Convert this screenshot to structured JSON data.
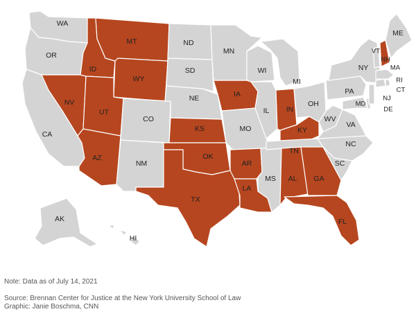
{
  "colors": {
    "highlight": "#b6461f",
    "other": "#d4d4d4",
    "border": "#ffffff"
  },
  "states": [
    {
      "abbr": "WA",
      "highlighted": false
    },
    {
      "abbr": "OR",
      "highlighted": false
    },
    {
      "abbr": "CA",
      "highlighted": false
    },
    {
      "abbr": "NV",
      "highlighted": true
    },
    {
      "abbr": "ID",
      "highlighted": true
    },
    {
      "abbr": "MT",
      "highlighted": true
    },
    {
      "abbr": "WY",
      "highlighted": true
    },
    {
      "abbr": "UT",
      "highlighted": true
    },
    {
      "abbr": "AZ",
      "highlighted": true
    },
    {
      "abbr": "CO",
      "highlighted": false
    },
    {
      "abbr": "NM",
      "highlighted": false
    },
    {
      "abbr": "ND",
      "highlighted": false
    },
    {
      "abbr": "SD",
      "highlighted": false
    },
    {
      "abbr": "NE",
      "highlighted": false
    },
    {
      "abbr": "KS",
      "highlighted": true
    },
    {
      "abbr": "OK",
      "highlighted": true
    },
    {
      "abbr": "TX",
      "highlighted": true
    },
    {
      "abbr": "MN",
      "highlighted": false
    },
    {
      "abbr": "IA",
      "highlighted": true
    },
    {
      "abbr": "MO",
      "highlighted": false
    },
    {
      "abbr": "AR",
      "highlighted": true
    },
    {
      "abbr": "LA",
      "highlighted": true
    },
    {
      "abbr": "WI",
      "highlighted": false
    },
    {
      "abbr": "IL",
      "highlighted": false
    },
    {
      "abbr": "MS",
      "highlighted": false
    },
    {
      "abbr": "MI",
      "highlighted": false
    },
    {
      "abbr": "IN",
      "highlighted": true
    },
    {
      "abbr": "KY",
      "highlighted": true
    },
    {
      "abbr": "TN",
      "highlighted": false
    },
    {
      "abbr": "AL",
      "highlighted": true
    },
    {
      "abbr": "GA",
      "highlighted": true
    },
    {
      "abbr": "FL",
      "highlighted": true
    },
    {
      "abbr": "OH",
      "highlighted": false
    },
    {
      "abbr": "WV",
      "highlighted": false
    },
    {
      "abbr": "VA",
      "highlighted": false
    },
    {
      "abbr": "NC",
      "highlighted": false
    },
    {
      "abbr": "SC",
      "highlighted": false
    },
    {
      "abbr": "PA",
      "highlighted": false
    },
    {
      "abbr": "NY",
      "highlighted": false
    },
    {
      "abbr": "MD",
      "highlighted": false
    },
    {
      "abbr": "DE",
      "highlighted": false
    },
    {
      "abbr": "NJ",
      "highlighted": false
    },
    {
      "abbr": "CT",
      "highlighted": false
    },
    {
      "abbr": "RI",
      "highlighted": false
    },
    {
      "abbr": "MA",
      "highlighted": false
    },
    {
      "abbr": "VT",
      "highlighted": false
    },
    {
      "abbr": "NH",
      "highlighted": true
    },
    {
      "abbr": "ME",
      "highlighted": false
    },
    {
      "abbr": "AK",
      "highlighted": false
    },
    {
      "abbr": "HI",
      "highlighted": false
    }
  ],
  "notes": {
    "note": "Note: Data as of July 14, 2021",
    "source": "Source: Brennan Center for Justice at the New York University School of Law",
    "graphic": "Graphic: Janie Boschma, CNN"
  }
}
